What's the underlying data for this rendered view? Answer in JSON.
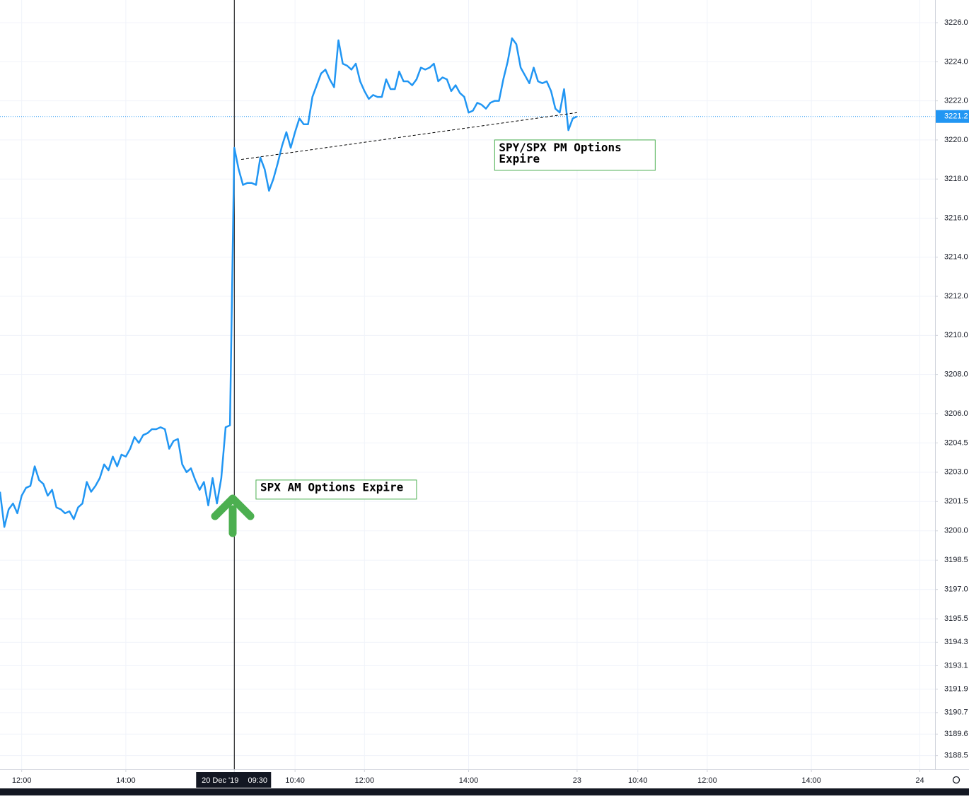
{
  "chart_data": {
    "type": "line",
    "series": [
      {
        "color": "#2196f3",
        "values": [
          3202.0,
          3200.2,
          3201.1,
          3201.4,
          3200.9,
          3201.8,
          3202.2,
          3202.3,
          3203.3,
          3202.6,
          3202.4,
          3201.8,
          3202.1,
          3201.2,
          3201.1,
          3200.9,
          3201.0,
          3200.6,
          3201.2,
          3201.4,
          3202.5,
          3202.0,
          3202.3,
          3202.7,
          3203.4,
          3203.1,
          3203.8,
          3203.3,
          3203.9,
          3203.8,
          3204.2,
          3204.8,
          3204.5,
          3204.9,
          3205.0,
          3205.2,
          3205.2,
          3205.3,
          3205.2,
          3204.2,
          3204.6,
          3204.7,
          3203.4,
          3203.0,
          3203.2,
          3202.6,
          3202.1,
          3202.5,
          3201.3,
          3202.7,
          3201.4,
          3202.7,
          3205.3,
          3205.4,
          3219.6,
          3218.5,
          3217.7,
          3217.8,
          3217.8,
          3217.7,
          3219.1,
          3218.5,
          3217.4,
          3218.0,
          3218.8,
          3219.7,
          3220.4,
          3219.6,
          3220.4,
          3221.1,
          3220.8,
          3220.8,
          3222.2,
          3222.8,
          3223.4,
          3223.6,
          3223.1,
          3222.7,
          3225.1,
          3223.9,
          3223.8,
          3223.6,
          3223.9,
          3223.0,
          3222.5,
          3222.1,
          3222.3,
          3222.2,
          3222.2,
          3223.1,
          3222.6,
          3222.6,
          3223.5,
          3223.0,
          3223.0,
          3222.8,
          3223.1,
          3223.7,
          3223.6,
          3223.7,
          3223.9,
          3223.0,
          3223.2,
          3223.1,
          3222.5,
          3222.8,
          3222.4,
          3222.2,
          3221.4,
          3221.5,
          3221.9,
          3221.8,
          3221.6,
          3221.9,
          3222.0,
          3222.0,
          3223.1,
          3224.0,
          3225.2,
          3224.9,
          3223.7,
          3223.3,
          3222.9,
          3223.7,
          3223.0,
          3222.9,
          3223.0,
          3222.5,
          3221.6,
          3221.4,
          3222.6,
          3220.5,
          3221.1,
          3221.2
        ]
      }
    ],
    "last_value": 3221.2,
    "xlim": [
      0,
      215.5
    ],
    "xticks": [
      {
        "value": 5,
        "label": "12:00"
      },
      {
        "value": 29,
        "label": "14:00"
      },
      {
        "value": 54,
        "label": "09:30"
      },
      {
        "value": 68,
        "label": "10:40"
      },
      {
        "value": 84,
        "label": "12:00"
      },
      {
        "value": 108,
        "label": "14:00"
      },
      {
        "value": 133,
        "label": "23"
      },
      {
        "value": 147,
        "label": "10:40"
      },
      {
        "value": 163,
        "label": "12:00"
      },
      {
        "value": 187,
        "label": "14:00"
      },
      {
        "value": 212,
        "label": "24"
      }
    ],
    "crosshair_tick": 2,
    "crosshair_date": "20 Dec '19",
    "ylim": [
      3187.8,
      3227.16
    ],
    "yticks": [
      {
        "value": 3226,
        "label": "3226.0"
      },
      {
        "value": 3224,
        "label": "3224.0"
      },
      {
        "value": 3222,
        "label": "3222.0"
      },
      {
        "value": 3220,
        "label": "3220.0"
      },
      {
        "value": 3218,
        "label": "3218.0"
      },
      {
        "value": 3216,
        "label": "3216.0"
      },
      {
        "value": 3214,
        "label": "3214.0"
      },
      {
        "value": 3212,
        "label": "3212.0"
      },
      {
        "value": 3210,
        "label": "3210.0"
      },
      {
        "value": 3208,
        "label": "3208.0"
      },
      {
        "value": 3206,
        "label": "3206.0"
      },
      3204.5,
      {
        "value": 3203,
        "label": "3203.0"
      },
      3201.5,
      {
        "value": 3200,
        "label": "3200.0"
      },
      3198.5,
      {
        "value": 3197,
        "label": "3197.0"
      },
      3195.5,
      3194.3,
      3193.1,
      3191.9,
      3190.7,
      3189.6,
      3188.5
    ],
    "grid": true,
    "trendline": {
      "x": [
        55.6,
        133
      ],
      "values": [
        3219.0,
        3221.4
      ]
    },
    "annotations": [
      {
        "text": "SPX AM Options Expire",
        "x": 59,
        "value": 3202.6
      },
      {
        "text": "SPY/SPX PM Options Expire",
        "x": 114,
        "value": 3220.0
      }
    ]
  }
}
